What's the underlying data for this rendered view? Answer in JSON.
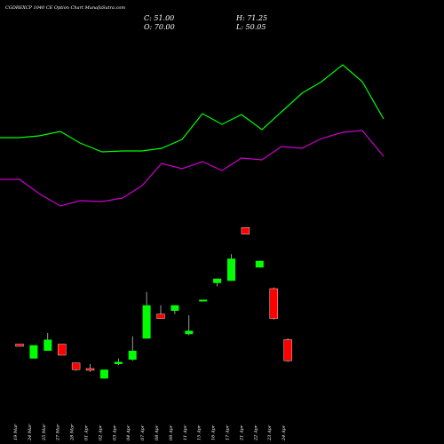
{
  "header": {
    "title": "CGDREXCP 1040  CE Option  Chart MunafaSutra.com",
    "close": "C: 51.00",
    "open": "O: 70.00",
    "high": "H: 71.25",
    "low": "L: 50.05"
  },
  "colors": {
    "background": "#000000",
    "up": "#00ff00",
    "down": "#ff0000",
    "wick": "#ffffff",
    "line_upper": "#00ff00",
    "line_lower": "#cc00cc"
  },
  "chart_data": {
    "type": "candlestick",
    "title": "CGDREXCP 1040  CE Option  Chart MunafaSutra.com",
    "categories": [
      "19 Mar",
      "24 Mar",
      "25 Mar",
      "27 Mar",
      "28 Mar",
      "01 Apr",
      "02 Apr",
      "03 Apr",
      "04 Apr",
      "07 Apr",
      "08 Apr",
      "09 Apr",
      "11 Apr",
      "15 Apr",
      "16 Apr",
      "17 Apr",
      "21 Apr",
      "22 Apr",
      "23 Apr",
      "24 Apr"
    ],
    "ylim": [
      0,
      320
    ],
    "candles": [
      {
        "date": "19 Mar",
        "open": 66,
        "close": 64,
        "high": 66,
        "low": 64,
        "dir": "down"
      },
      {
        "date": "24 Mar",
        "open": 53,
        "close": 65,
        "high": 65,
        "low": 53,
        "dir": "up"
      },
      {
        "date": "25 Mar",
        "open": 60,
        "close": 70,
        "high": 76,
        "low": 60,
        "dir": "up"
      },
      {
        "date": "27 Mar",
        "open": 66,
        "close": 56,
        "high": 66,
        "low": 56,
        "dir": "down"
      },
      {
        "date": "28 Mar",
        "open": 49,
        "close": 43,
        "high": 49,
        "low": 42,
        "dir": "down"
      },
      {
        "date": "01 Apr",
        "open": 44,
        "close": 43,
        "high": 48,
        "low": 41,
        "dir": "down"
      },
      {
        "date": "02 Apr",
        "open": 35,
        "close": 43,
        "high": 43,
        "low": 35,
        "dir": "up"
      },
      {
        "date": "03 Apr",
        "open": 48,
        "close": 50,
        "high": 53,
        "low": 47,
        "dir": "up"
      },
      {
        "date": "04 Apr",
        "open": 52,
        "close": 60,
        "high": 73,
        "low": 51,
        "dir": "up"
      },
      {
        "date": "07 Apr",
        "open": 71,
        "close": 101,
        "high": 113,
        "low": 71,
        "dir": "up"
      },
      {
        "date": "08 Apr",
        "open": 93,
        "close": 89,
        "high": 101,
        "low": 89,
        "dir": "down"
      },
      {
        "date": "09 Apr",
        "open": 96,
        "close": 101,
        "high": 101,
        "low": 93,
        "dir": "up"
      },
      {
        "date": "11 Apr",
        "open": 75,
        "close": 78,
        "high": 92,
        "low": 74,
        "dir": "up"
      },
      {
        "date": "15 Apr",
        "open": 106,
        "close": 106,
        "high": 106,
        "low": 106,
        "dir": "up"
      },
      {
        "date": "16 Apr",
        "open": 121,
        "close": 125,
        "high": 125,
        "low": 118,
        "dir": "up"
      },
      {
        "date": "17 Apr",
        "open": 123,
        "close": 143,
        "high": 147,
        "low": 123,
        "dir": "up"
      },
      {
        "date": "21 Apr",
        "open": 171,
        "close": 165,
        "high": 171,
        "low": 165,
        "dir": "down"
      },
      {
        "date": "22 Apr",
        "open": 135,
        "close": 141,
        "high": 141,
        "low": 135,
        "dir": "up"
      },
      {
        "date": "23 Apr",
        "open": 116,
        "close": 89,
        "high": 117,
        "low": 88,
        "dir": "down"
      },
      {
        "date": "24 Apr",
        "open": 70,
        "close": 51,
        "high": 71.25,
        "low": 50.05,
        "dir": "down"
      }
    ],
    "line_upper": [
      [
        0,
        155
      ],
      [
        22,
        155
      ],
      [
        44,
        153
      ],
      [
        68,
        148
      ],
      [
        90,
        161
      ],
      [
        115,
        171
      ],
      [
        138,
        170
      ],
      [
        160,
        170
      ],
      [
        182,
        167
      ],
      [
        205,
        157
      ],
      [
        228,
        128
      ],
      [
        250,
        140
      ],
      [
        272,
        129
      ],
      [
        295,
        146
      ],
      [
        317,
        126
      ],
      [
        340,
        105
      ],
      [
        362,
        92
      ],
      [
        386,
        73
      ],
      [
        408,
        92
      ],
      [
        432,
        134
      ]
    ],
    "line_lower": [
      [
        0,
        202
      ],
      [
        22,
        202
      ],
      [
        44,
        218
      ],
      [
        68,
        232
      ],
      [
        90,
        226
      ],
      [
        115,
        227
      ],
      [
        138,
        223
      ],
      [
        160,
        209
      ],
      [
        182,
        184
      ],
      [
        205,
        190
      ],
      [
        228,
        182
      ],
      [
        250,
        192
      ],
      [
        272,
        178
      ],
      [
        295,
        180
      ],
      [
        317,
        165
      ],
      [
        340,
        167
      ],
      [
        362,
        156
      ],
      [
        386,
        149
      ],
      [
        408,
        147
      ],
      [
        432,
        176
      ]
    ],
    "grid": false
  }
}
